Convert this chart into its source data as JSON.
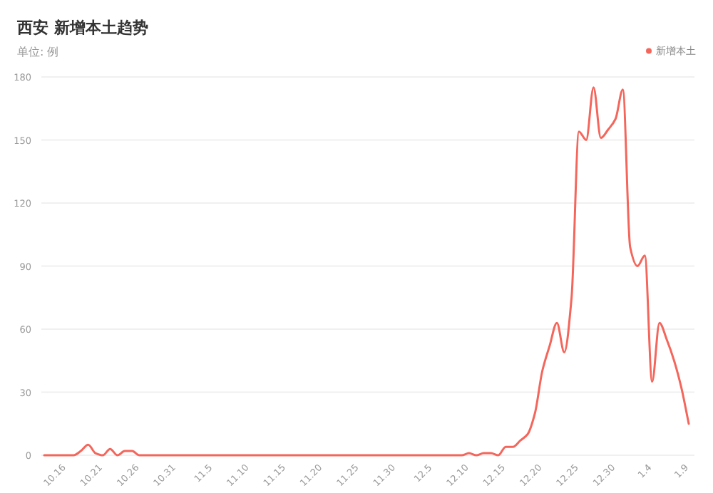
{
  "chart_data": {
    "type": "line",
    "title": "西安 新增本土趋势",
    "subtitle": "单位: 例",
    "legend": "top right",
    "grid": "y",
    "marker": "none",
    "line_style": "solid",
    "categories": [
      null,
      null,
      null,
      "10.16",
      null,
      null,
      null,
      null,
      "10.21",
      null,
      null,
      null,
      null,
      "10.26",
      null,
      null,
      null,
      null,
      "10.31",
      null,
      null,
      null,
      null,
      "11.5",
      null,
      null,
      null,
      null,
      "11.10",
      null,
      null,
      null,
      null,
      "11.15",
      null,
      null,
      null,
      null,
      "11.20",
      null,
      null,
      null,
      null,
      "11.25",
      null,
      null,
      null,
      null,
      "11.30",
      null,
      null,
      null,
      null,
      "12.5",
      null,
      null,
      null,
      null,
      "12.10",
      null,
      null,
      null,
      null,
      "12.15",
      null,
      null,
      null,
      null,
      "12.20",
      null,
      null,
      null,
      null,
      "12.25",
      null,
      null,
      null,
      null,
      "12.30",
      null,
      null,
      null,
      null,
      "1.4",
      null,
      null,
      null,
      null,
      "1.9"
    ],
    "series": [
      {
        "name": "新增本土",
        "color": "#f4665b",
        "values": [
          0,
          0,
          0,
          0,
          0,
          2,
          5,
          1,
          0,
          3,
          0,
          2,
          2,
          0,
          0,
          0,
          0,
          0,
          0,
          0,
          0,
          0,
          0,
          0,
          0,
          0,
          0,
          0,
          0,
          0,
          0,
          0,
          0,
          0,
          0,
          0,
          0,
          0,
          0,
          0,
          0,
          0,
          0,
          0,
          0,
          0,
          0,
          0,
          0,
          0,
          0,
          0,
          0,
          0,
          0,
          0,
          0,
          0,
          1,
          0,
          1,
          1,
          0,
          4,
          4,
          7,
          10,
          20,
          40,
          52,
          63,
          49,
          75,
          154,
          150,
          175,
          151,
          155,
          160,
          174,
          99,
          90,
          95,
          35,
          63,
          55,
          45,
          32,
          15
        ]
      }
    ],
    "ylim": [
      0,
      180
    ],
    "yticks": [
      0,
      30,
      60,
      90,
      120,
      150,
      180
    ]
  }
}
